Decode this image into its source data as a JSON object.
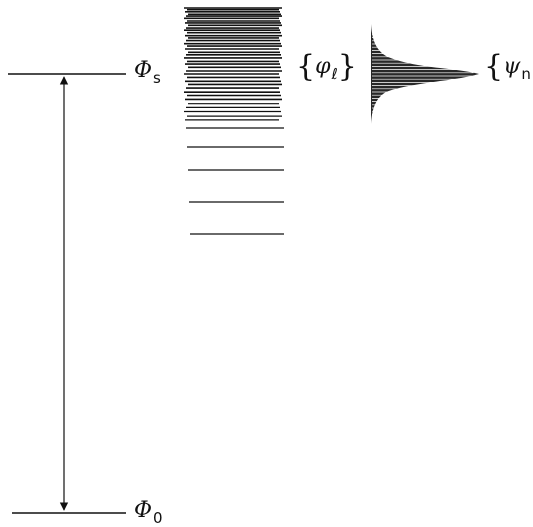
{
  "diagram": {
    "labels": {
      "phi_s": {
        "symbol": "Φ",
        "subscript": "s"
      },
      "phi_0": {
        "symbol": "Φ",
        "subscript": "0"
      },
      "phi_l": {
        "open": "{",
        "symbol": "φ",
        "subscript": "ℓ",
        "close": "}"
      },
      "psi_n": {
        "open": "{",
        "symbol": "ψ",
        "subscript": "n"
      }
    },
    "colors": {
      "ink": "#111111",
      "background": "#ffffff"
    }
  }
}
